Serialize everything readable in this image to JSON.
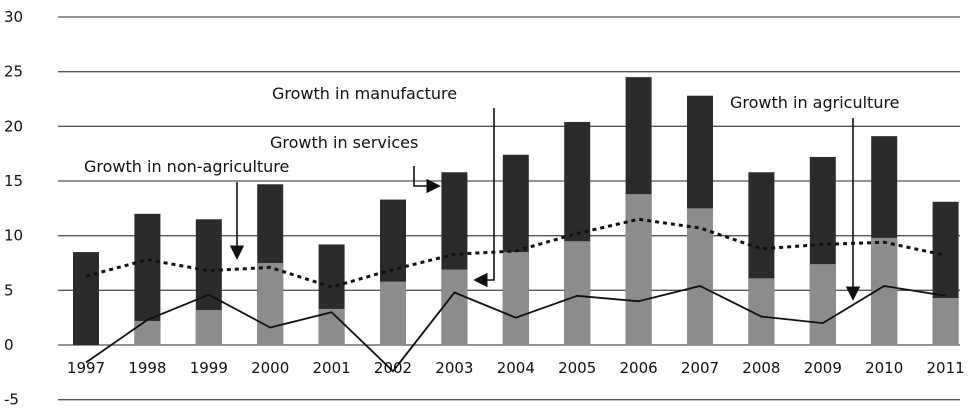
{
  "chart_data": {
    "type": "bar",
    "categories": [
      "1997",
      "1998",
      "1999",
      "2000",
      "2001",
      "2002",
      "2003",
      "2004",
      "2005",
      "2006",
      "2007",
      "2008",
      "2009",
      "2010",
      "2011"
    ],
    "series": [
      {
        "values": [
          0.0,
          2.2,
          3.2,
          7.5,
          3.3,
          5.8,
          6.9,
          8.5,
          9.5,
          13.8,
          12.5,
          6.1,
          7.4,
          9.8,
          4.3
        ]
      },
      {
        "values": [
          8.5,
          12.0,
          11.5,
          14.7,
          9.2,
          13.3,
          15.8,
          17.4,
          20.4,
          24.5,
          22.8,
          15.8,
          17.2,
          19.1,
          13.1
        ]
      },
      {
        "values": [
          6.3,
          7.8,
          6.8,
          7.1,
          5.3,
          6.9,
          8.3,
          8.6,
          10.2,
          11.5,
          10.7,
          8.8,
          9.2,
          9.4,
          8.2
        ]
      },
      {
        "values": [
          -1.6,
          2.3,
          4.6,
          1.6,
          3.0,
          -2.4,
          4.8,
          2.5,
          4.5,
          4.0,
          5.4,
          2.6,
          2.0,
          5.4,
          4.5
        ]
      }
    ],
    "ylim": [
      -5,
      30
    ],
    "yticks": [
      -5,
      0,
      5,
      10,
      15,
      20,
      25,
      30
    ],
    "grid": true,
    "annotations": [
      "Growth in manufacture",
      "Growth in services",
      "Growth in non-agriculture",
      "Growth in agriculture"
    ],
    "colors": {
      "light_bar": "#8c8c8c",
      "dark_bar": "#2b2b2b",
      "dotted_line": "#111111",
      "solid_line": "#111111",
      "grid": "#555555"
    }
  }
}
